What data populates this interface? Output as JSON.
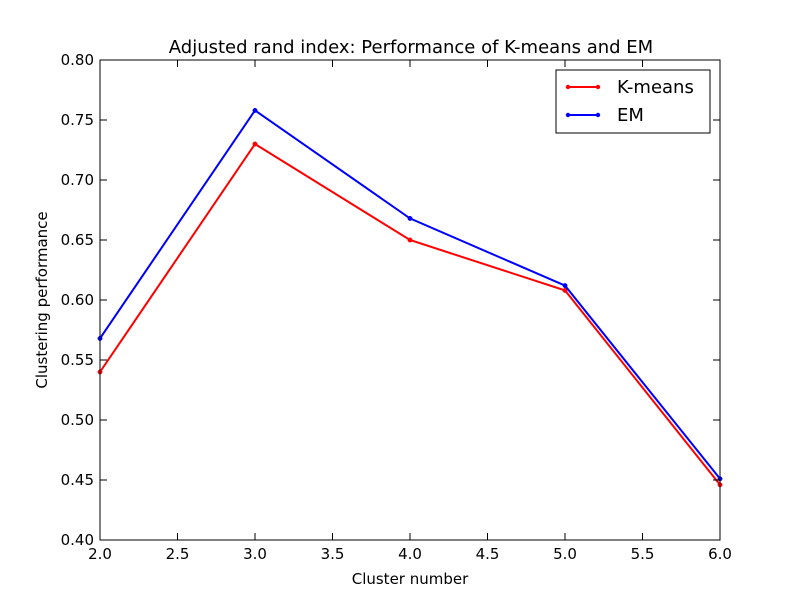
{
  "chart_data": {
    "type": "line",
    "title": "Adjusted rand index: Performance of K-means and EM",
    "xlabel": "Cluster number",
    "ylabel": "Clustering performance",
    "xlim": [
      2.0,
      6.0
    ],
    "ylim": [
      0.4,
      0.8
    ],
    "x_ticks": [
      "2.0",
      "2.5",
      "3.0",
      "3.5",
      "4.0",
      "4.5",
      "5.0",
      "5.5",
      "6.0"
    ],
    "y_ticks": [
      "0.40",
      "0.45",
      "0.50",
      "0.55",
      "0.60",
      "0.65",
      "0.70",
      "0.75",
      "0.80"
    ],
    "x": [
      2,
      3,
      4,
      5,
      6
    ],
    "grid": false,
    "legend_position": "top-right",
    "series": [
      {
        "name": "K-means",
        "color": "#ff0000",
        "values": [
          0.54,
          0.73,
          0.65,
          0.608,
          0.446
        ]
      },
      {
        "name": "EM",
        "color": "#0000ff",
        "values": [
          0.568,
          0.758,
          0.668,
          0.612,
          0.451
        ]
      }
    ]
  }
}
